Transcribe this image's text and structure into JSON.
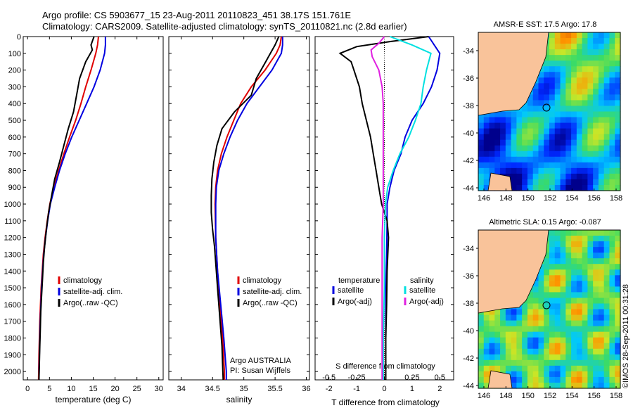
{
  "header": {
    "line1": "Argo profile: CS 5903677_15 23-Aug-2011 20110823_451 38.17S 151.761E",
    "line2": "Climatology: CARS2009. Satellite-adjusted climatology: synTS_20110821.nc (2.8d earlier)"
  },
  "side_label": "©IMOS 28-Sep-2011 00:31:28",
  "colors": {
    "climatology": "#e00000",
    "satellite": "#0000e0",
    "argo": "#000000",
    "sal_sat": "#00e0e0",
    "sal_argo": "#e020e0",
    "land": "#f9c39a"
  },
  "chart_data": [
    {
      "type": "line",
      "panel": "temperature",
      "xlabel": "temperature (deg C)",
      "ylabel": "",
      "xlim": [
        -1,
        31
      ],
      "ylim": [
        2050,
        0
      ],
      "xticks": [
        "0",
        "5",
        "10",
        "15",
        "20",
        "25",
        "30"
      ],
      "yticks": [
        "0",
        "100",
        "200",
        "300",
        "400",
        "500",
        "600",
        "700",
        "800",
        "900",
        "1000",
        "1100",
        "1200",
        "1300",
        "1400",
        "1500",
        "1600",
        "1700",
        "1800",
        "1900",
        "2000"
      ],
      "legend": [
        "climatology",
        "satellite-adj. clim.",
        "Argo(..raw -QC)"
      ],
      "series": [
        {
          "name": "climatology",
          "depth": [
            0,
            50,
            100,
            200,
            300,
            400,
            500,
            600,
            700,
            800,
            900,
            1000,
            1100,
            1200,
            1300,
            1500,
            1700,
            1900,
            2050
          ],
          "values": [
            16.2,
            16,
            15.6,
            14.5,
            13.3,
            12.2,
            11,
            9.6,
            8.3,
            7.1,
            6,
            5.1,
            4.5,
            4,
            3.6,
            3.1,
            2.8,
            2.6,
            2.5
          ]
        },
        {
          "name": "satellite-adj. clim.",
          "depth": [
            0,
            50,
            100,
            200,
            300,
            400,
            500,
            600,
            700,
            800,
            900,
            1000,
            1100,
            1200,
            1300,
            1500,
            1700,
            1900,
            2050
          ],
          "values": [
            17.8,
            17.8,
            17.6,
            16.6,
            15.2,
            13.5,
            11.8,
            10.1,
            8.6,
            7.3,
            6.2,
            5.2,
            4.6,
            4.1,
            3.7,
            3.2,
            2.9,
            2.7,
            2.6
          ]
        },
        {
          "name": "Argo(..raw -QC)",
          "depth": [
            0,
            50,
            80,
            150,
            250,
            350,
            450,
            550,
            650,
            750,
            850,
            950,
            1050,
            1150,
            1250,
            1350,
            1450,
            1550,
            1650,
            1750,
            1850,
            1950,
            2050
          ],
          "values": [
            15.2,
            14.5,
            14.8,
            13.3,
            11.9,
            11.2,
            10.5,
            9.3,
            8.3,
            7.3,
            6.2,
            5.5,
            4.8,
            4.3,
            3.9,
            3.6,
            3.4,
            3.2,
            3,
            2.9,
            2.8,
            2.7,
            2.6
          ]
        }
      ]
    },
    {
      "type": "line",
      "panel": "salinity",
      "xlabel": "salinity",
      "xlim": [
        33.8,
        36.05
      ],
      "ylim": [
        2050,
        0
      ],
      "xticks": [
        "34",
        "34.5",
        "35",
        "35.5",
        "36"
      ],
      "legend": [
        "climatology",
        "satellite-adj. clim.",
        "Argo(..raw -QC)"
      ],
      "series": [
        {
          "name": "climatology",
          "depth": [
            0,
            50,
            100,
            200,
            300,
            400,
            500,
            600,
            700,
            800,
            900,
            1000,
            1200,
            1400,
            1600,
            1800,
            2000,
            2050
          ],
          "values": [
            35.6,
            35.58,
            35.52,
            35.34,
            35.12,
            34.95,
            34.84,
            34.73,
            34.64,
            34.58,
            34.55,
            34.54,
            34.55,
            34.58,
            34.62,
            34.66,
            34.69,
            34.69
          ]
        },
        {
          "name": "satellite-adj. clim.",
          "depth": [
            0,
            50,
            100,
            200,
            300,
            400,
            500,
            600,
            700,
            800,
            900,
            1000,
            1200,
            1400,
            1600,
            1800,
            2000,
            2050
          ],
          "values": [
            35.62,
            35.62,
            35.6,
            35.45,
            35.25,
            35.05,
            34.9,
            34.78,
            34.68,
            34.6,
            34.56,
            34.55,
            34.55,
            34.58,
            34.63,
            34.68,
            34.72,
            34.72
          ]
        },
        {
          "name": "Argo(..raw -QC)",
          "depth": [
            0,
            50,
            150,
            250,
            350,
            450,
            550,
            650,
            750,
            850,
            950,
            1050,
            1150,
            1250,
            1350,
            1450,
            1550,
            1650,
            1750,
            1850,
            1950,
            2050
          ],
          "values": [
            35.56,
            35.5,
            35.35,
            35.2,
            35.12,
            34.85,
            34.65,
            34.57,
            34.52,
            34.49,
            34.48,
            34.48,
            34.5,
            34.53,
            34.55,
            34.57,
            34.59,
            34.61,
            34.63,
            34.65,
            34.66,
            34.67
          ]
        }
      ],
      "annotation": [
        "Argo AUSTRALIA",
        "PI: Susan Wijffels"
      ]
    },
    {
      "type": "line",
      "panel": "difference",
      "xlabel": "T difference from climatology",
      "xlabel_top": "S difference from climatology",
      "xlim": [
        -2.5,
        2.5
      ],
      "ylim": [
        2050,
        0
      ],
      "xticks_T": [
        "-2",
        "-1",
        "0",
        "1",
        "2"
      ],
      "xticks_S": [
        "-0.5",
        "-0.25",
        "0",
        "0.25",
        "0.5"
      ],
      "legend_temperature_title": "temperature",
      "legend_salinity_title": "salinity",
      "legend_temperature": [
        "satellite",
        "Argo(-adj)"
      ],
      "legend_salinity": [
        "satellite",
        "Argo(-adj)"
      ],
      "series": [
        {
          "name": "T satellite",
          "depth": [
            0,
            50,
            100,
            200,
            300,
            400,
            500,
            600,
            700,
            800,
            900,
            1000,
            1100,
            1300,
            1500,
            1700,
            1900,
            2050
          ],
          "values": [
            1.6,
            1.8,
            2.0,
            1.9,
            1.7,
            1.4,
            1.0,
            0.75,
            0.6,
            0.35,
            0.2,
            0.1,
            0.1,
            0.08,
            0.05,
            0.05,
            0.05,
            0.05
          ]
        },
        {
          "name": "T Argo(-adj)",
          "depth": [
            0,
            30,
            60,
            100,
            150,
            200,
            300,
            400,
            500,
            600,
            700,
            800,
            900,
            1000,
            1100,
            1200,
            1400,
            1600,
            1800,
            2000,
            2050
          ],
          "values": [
            1.6,
            0.2,
            -1.0,
            -1.6,
            -1.2,
            -1.1,
            -0.9,
            -0.8,
            -0.65,
            -0.5,
            -0.4,
            -0.3,
            -0.2,
            -0.1,
            0.1,
            0.15,
            0.1,
            0.08,
            0.05,
            0.05,
            0.05
          ]
        },
        {
          "name": "S satellite",
          "depth": [
            0,
            50,
            100,
            200,
            300,
            400,
            500,
            600,
            700,
            800,
            900,
            1000,
            1200,
            1500,
            1800,
            2050
          ],
          "values": [
            0.05,
            0.25,
            0.42,
            0.38,
            0.35,
            0.33,
            0.28,
            0.22,
            0.14,
            0.08,
            0.03,
            0.01,
            0.0,
            0.0,
            -0.01,
            -0.01
          ]
        },
        {
          "name": "S Argo(-adj)",
          "depth": [
            0,
            40,
            80,
            120,
            200,
            300,
            400,
            600,
            900,
            1000,
            1200,
            1500,
            1800,
            2050
          ],
          "values": [
            0.0,
            -0.05,
            -0.12,
            -0.11,
            -0.05,
            -0.02,
            -0.01,
            -0.01,
            -0.01,
            -0.01,
            -0.02,
            -0.02,
            -0.02,
            -0.02
          ]
        }
      ]
    }
  ],
  "maps": [
    {
      "title": "AMSR-E SST: 17.5 Argo: 17.8",
      "xticks": [
        "146",
        "148",
        "150",
        "152",
        "154",
        "156",
        "158"
      ],
      "yticks": [
        "-34",
        "-36",
        "-38",
        "-40",
        "-42",
        "-44"
      ]
    },
    {
      "title": "Altimetric SLA: 0.15 Argo: -0.087",
      "xticks": [
        "146",
        "148",
        "150",
        "152",
        "154",
        "156",
        "158"
      ],
      "yticks": [
        "-34",
        "-36",
        "-38",
        "-40",
        "-42",
        "-44"
      ]
    }
  ]
}
